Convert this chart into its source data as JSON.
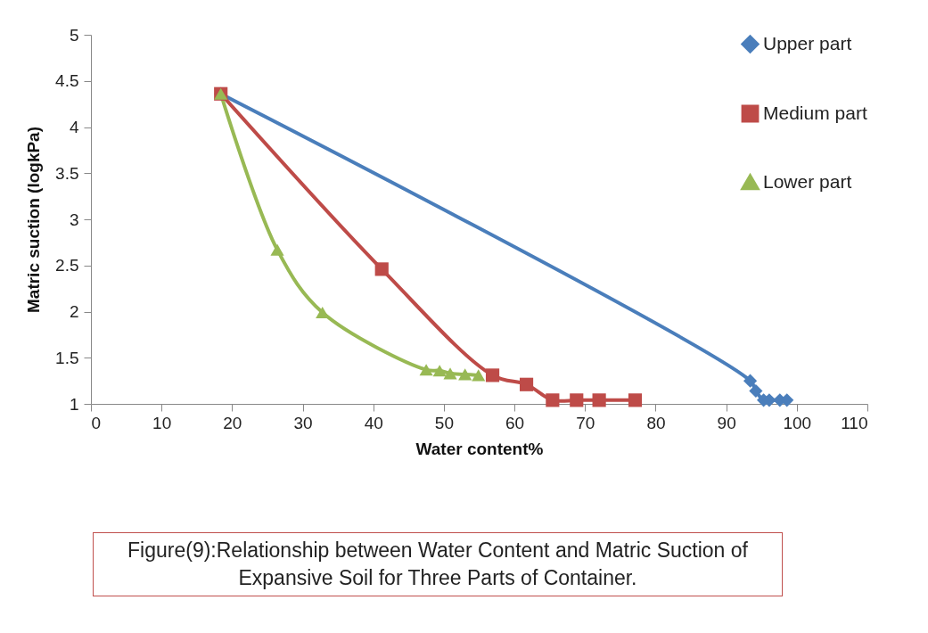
{
  "chart_data": {
    "type": "line",
    "xlabel": "Water content%",
    "ylabel": "Matric  suction (logkPa)",
    "xlim": [
      0,
      110
    ],
    "xticks": [
      0,
      10,
      20,
      30,
      40,
      50,
      60,
      70,
      80,
      90,
      100,
      110
    ],
    "ylim": [
      1,
      5
    ],
    "yticks": [
      1,
      1.5,
      2,
      2.5,
      3,
      3.5,
      4,
      4.5,
      5
    ],
    "grid": false,
    "legend": "top right",
    "series": [
      {
        "name": "Upper part",
        "color": "#4a7ebb",
        "marker": "diamond",
        "x": [
          18.4,
          93.4,
          94.2,
          95.3,
          96.1,
          97.6,
          98.6
        ],
        "values": [
          4.36,
          1.25,
          1.14,
          1.04,
          1.04,
          1.04,
          1.04
        ]
      },
      {
        "name": "Medium part",
        "color": "#be4b48",
        "marker": "square",
        "x": [
          18.4,
          41.2,
          56.9,
          61.7,
          65.4,
          68.8,
          72.0,
          77.1
        ],
        "values": [
          4.36,
          2.46,
          1.31,
          1.21,
          1.04,
          1.04,
          1.04,
          1.04
        ]
      },
      {
        "name": "Lower part",
        "color": "#98b954",
        "marker": "triangle",
        "x": [
          18.4,
          26.4,
          32.8,
          47.5,
          49.4,
          50.9,
          53.0,
          54.9
        ],
        "values": [
          4.36,
          2.67,
          1.99,
          1.37,
          1.36,
          1.33,
          1.32,
          1.31
        ]
      }
    ],
    "annotations": [
      "Figure(9):Relationship between Water Content and Matric Suction of Expansive Soil for Three Parts of Container."
    ]
  }
}
